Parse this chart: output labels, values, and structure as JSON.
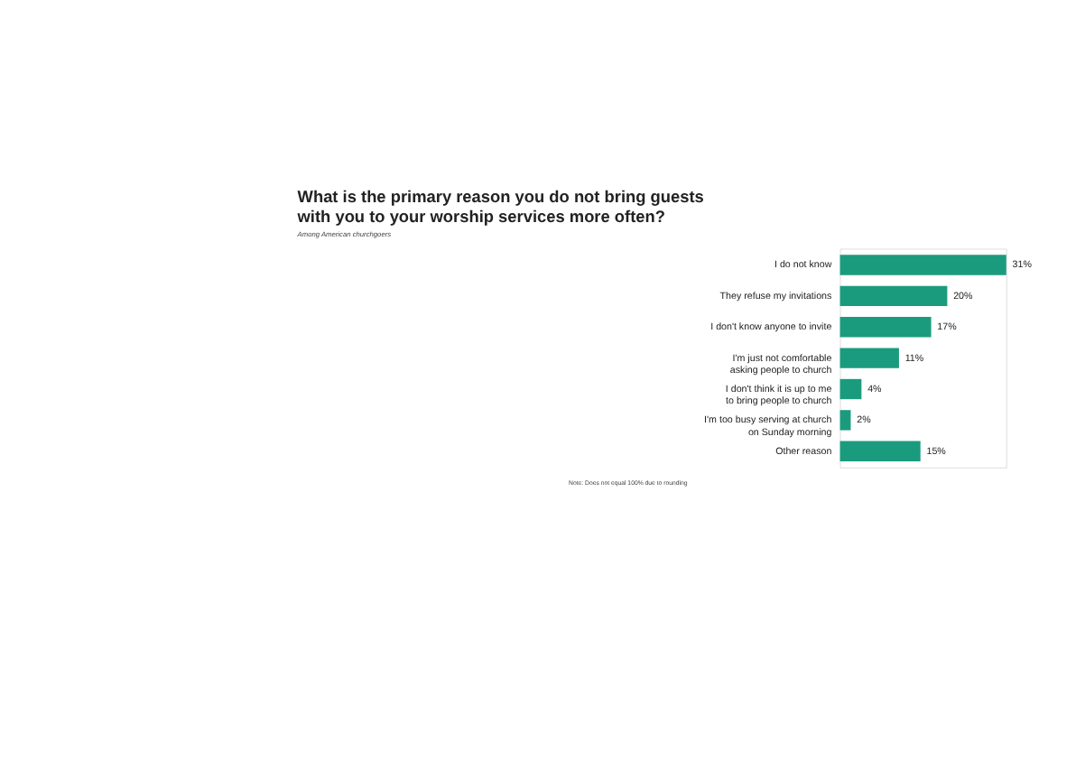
{
  "chart_data": {
    "type": "bar",
    "orientation": "horizontal",
    "title": "What is the primary reason you do not bring guests\nwith you to your worship services more often?",
    "subtitle": "Among American churchgoers",
    "categories": [
      "I do not know",
      "They refuse my invitations",
      "I don't know anyone to invite",
      "I'm just not comfortable\nasking people to church",
      "I don't think it is up to me\nto bring people to church",
      "I'm too busy serving at church\non Sunday morning",
      "Other reason"
    ],
    "values": [
      31,
      20,
      17,
      11,
      4,
      2,
      15
    ],
    "value_labels": [
      "31%",
      "20%",
      "17%",
      "11%",
      "4%",
      "2%",
      "15%"
    ],
    "color": "#1a9b7e",
    "annotations": [
      "Note: Does not equal 100% due to rounding"
    ]
  }
}
